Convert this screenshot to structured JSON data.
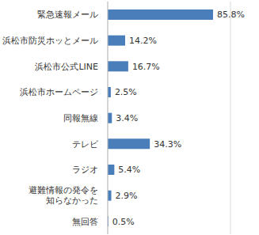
{
  "chart_data": {
    "type": "bar",
    "orientation": "horizontal",
    "categories": [
      "緊急速報メール",
      "浜松市防災ホッとメール",
      "浜松市公式LINE",
      "浜松市ホームページ",
      "同報無線",
      "テレビ",
      "ラジオ",
      "避難情報の発令を\n知らなかった",
      "無回答"
    ],
    "values": [
      85.8,
      14.2,
      16.7,
      2.5,
      3.4,
      34.3,
      5.4,
      2.9,
      0.5
    ],
    "value_labels": [
      "85.8%",
      "14.2%",
      "16.7%",
      "2.5%",
      "3.4%",
      "34.3%",
      "5.4%",
      "2.9%",
      "0.5%"
    ],
    "color": "#4a7ebb",
    "xlim": [
      0,
      100
    ],
    "xticks": [
      0,
      20,
      40,
      60,
      80,
      100
    ],
    "grid": true,
    "data_labels": true,
    "tick_labels": "y"
  }
}
